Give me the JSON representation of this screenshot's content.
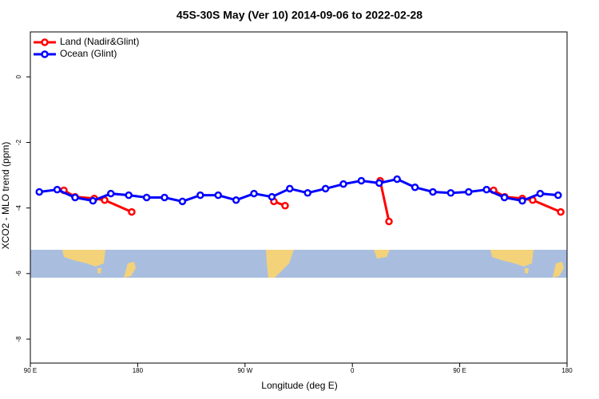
{
  "chart_data": {
    "type": "line",
    "title": "45S-30S May (Ver 10)   2014-09-06 to 2022-02-28",
    "x_label": "Longitude (deg E)",
    "y_label": "XCO2 - MLO trend (ppm)",
    "xlim": [
      90,
      540
    ],
    "ylim": [
      -8.73,
      1.37
    ],
    "xticks": [
      {
        "value": 90,
        "label": "90 E"
      },
      {
        "value": 180,
        "label": "180"
      },
      {
        "value": 270,
        "label": "90 W"
      },
      {
        "value": 360,
        "label": "0"
      },
      {
        "value": 450,
        "label": "90 E"
      },
      {
        "value": 540,
        "label": "180"
      }
    ],
    "yticks": [
      0,
      -2,
      -4,
      -6,
      -8
    ],
    "legend": "top-left",
    "series": [
      {
        "name": "Land (Nadir&Glint)",
        "color": "#ff0000",
        "x": [
          118.1,
          127.5,
          143.6,
          152.3,
          175.0,
          null,
          294.2,
          303.6,
          null,
          383.3,
          390.7,
          null,
          478.4,
          487.8,
          502.5,
          511.2,
          534.7
        ],
        "values": [
          -3.46,
          -3.66,
          -3.71,
          -3.76,
          -4.12,
          null,
          -3.8,
          -3.93,
          null,
          -3.17,
          -4.41,
          null,
          -3.46,
          -3.66,
          -3.71,
          -3.76,
          -4.12
        ]
      },
      {
        "name": "Ocean (Glint)",
        "color": "#0000ff",
        "x": [
          97.5,
          112.5,
          127.5,
          142.5,
          157.5,
          172.5,
          187.5,
          202.5,
          217.5,
          232.5,
          247.5,
          262.5,
          277.5,
          292.5,
          307.5,
          322.5,
          337.5,
          352.5,
          367.5,
          382.5,
          397.5,
          412.5,
          427.5,
          442.5,
          457.5,
          472.5,
          487.5,
          502.5,
          517.5,
          532.5
        ],
        "values": [
          -3.51,
          -3.44,
          -3.68,
          -3.78,
          -3.56,
          -3.61,
          -3.68,
          -3.68,
          -3.8,
          -3.61,
          -3.61,
          -3.76,
          -3.56,
          -3.66,
          -3.41,
          -3.54,
          -3.41,
          -3.27,
          -3.17,
          -3.24,
          -3.12,
          -3.37,
          -3.51,
          -3.54,
          -3.51,
          -3.44,
          -3.68,
          -3.78,
          -3.56,
          -3.61
        ]
      }
    ]
  }
}
